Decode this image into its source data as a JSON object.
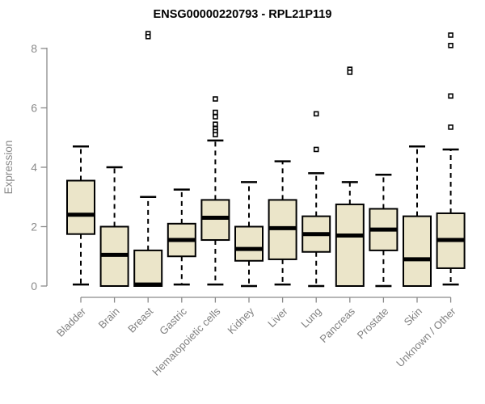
{
  "title": "ENSG00000220793 - RPL21P119",
  "chart_data": {
    "type": "boxplot",
    "title": "ENSG00000220793 - RPL21P119",
    "xlabel": "",
    "ylabel": "Expression",
    "ylim": [
      0,
      8.6
    ],
    "yticks": [
      "0",
      "2",
      "4",
      "6",
      "8"
    ],
    "ytick_values": [
      0,
      2,
      4,
      6,
      8
    ],
    "grid": false,
    "legend": "none",
    "categories": [
      "Bladder",
      "Brain",
      "Breast",
      "Gastric",
      "Hematopoietic cells",
      "Kidney",
      "Liver",
      "Lung",
      "Pancreas",
      "Prostate",
      "Skin",
      "Unknown / Other"
    ],
    "boxes": [
      {
        "category": "Bladder",
        "whisker_low": 0.05,
        "q1": 1.75,
        "median": 2.4,
        "q3": 3.55,
        "whisker_high": 4.7,
        "outliers": []
      },
      {
        "category": "Brain",
        "whisker_low": 0.0,
        "q1": 0.0,
        "median": 1.05,
        "q3": 2.0,
        "whisker_high": 4.0,
        "outliers": []
      },
      {
        "category": "Breast",
        "whisker_low": 0.0,
        "q1": 0.0,
        "median": 0.05,
        "q3": 1.2,
        "whisker_high": 3.0,
        "outliers": [
          8.5,
          8.4
        ]
      },
      {
        "category": "Gastric",
        "whisker_low": 0.05,
        "q1": 1.0,
        "median": 1.55,
        "q3": 2.1,
        "whisker_high": 3.25,
        "outliers": []
      },
      {
        "category": "Hematopoietic cells",
        "whisker_low": 0.05,
        "q1": 1.55,
        "median": 2.3,
        "q3": 2.9,
        "whisker_high": 4.9,
        "outliers": [
          6.3,
          5.85,
          5.7,
          5.45,
          5.3,
          5.2,
          5.1
        ]
      },
      {
        "category": "Kidney",
        "whisker_low": 0.0,
        "q1": 0.85,
        "median": 1.25,
        "q3": 2.0,
        "whisker_high": 3.5,
        "outliers": []
      },
      {
        "category": "Liver",
        "whisker_low": 0.05,
        "q1": 0.9,
        "median": 1.95,
        "q3": 2.9,
        "whisker_high": 4.2,
        "outliers": []
      },
      {
        "category": "Lung",
        "whisker_low": 0.0,
        "q1": 1.15,
        "median": 1.75,
        "q3": 2.35,
        "whisker_high": 3.8,
        "outliers": [
          5.8,
          4.6
        ]
      },
      {
        "category": "Pancreas",
        "whisker_low": 0.0,
        "q1": 0.0,
        "median": 1.7,
        "q3": 2.75,
        "whisker_high": 3.5,
        "outliers": [
          7.3,
          7.2
        ]
      },
      {
        "category": "Prostate",
        "whisker_low": 0.0,
        "q1": 1.2,
        "median": 1.9,
        "q3": 2.6,
        "whisker_high": 3.75,
        "outliers": []
      },
      {
        "category": "Skin",
        "whisker_low": 0.0,
        "q1": 0.0,
        "median": 0.9,
        "q3": 2.35,
        "whisker_high": 4.7,
        "outliers": []
      },
      {
        "category": "Unknown / Other",
        "whisker_low": 0.05,
        "q1": 0.6,
        "median": 1.55,
        "q3": 2.45,
        "whisker_high": 4.6,
        "outliers": [
          8.45,
          8.1,
          6.4,
          5.35
        ]
      }
    ],
    "colors": {
      "background": "#FFFFFF",
      "box_fill": "#EBE5C9",
      "box_border": "#000000",
      "median": "#000000",
      "whisker": "#000000",
      "outlier_fill": "#FFFFFF",
      "outlier_border": "#000000",
      "axis": "#8A8A8A",
      "tick_label": "#8A8A8A",
      "category_label": "#808080",
      "title": "#000000"
    }
  }
}
